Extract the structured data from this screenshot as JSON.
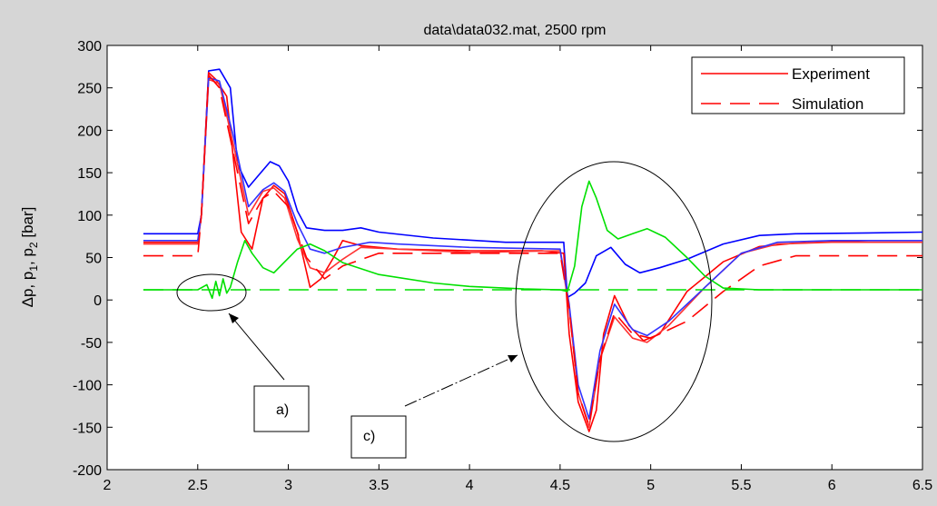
{
  "chart_data": {
    "type": "line",
    "title": "data\\data032.mat, 2500 rpm",
    "ylabel_main": "Δp, p",
    "ylabel_sub1": "1",
    "ylabel_sep": ", p",
    "ylabel_sub2": "2",
    "ylabel_unit": " [bar]",
    "xlim": [
      2,
      6.5
    ],
    "ylim": [
      -200,
      300
    ],
    "xticks": [
      2,
      2.5,
      3,
      3.5,
      4,
      4.5,
      5,
      5.5,
      6,
      6.5
    ],
    "yticks": [
      -200,
      -150,
      -100,
      -50,
      0,
      50,
      100,
      150,
      200,
      250,
      300
    ],
    "xtick_labels": [
      "2",
      "2.5",
      "3",
      "3.5",
      "4",
      "4.5",
      "5",
      "5.5",
      "6",
      "6.5"
    ],
    "ytick_labels": [
      "-200",
      "-150",
      "-100",
      "-50",
      "0",
      "50",
      "100",
      "150",
      "200",
      "250",
      "300"
    ],
    "legend": {
      "position": "top-right",
      "entries": [
        {
          "label": "Experiment",
          "style": "solid",
          "color": "#ff0000"
        },
        {
          "label": "Simulation",
          "style": "dashed",
          "color": "#ff0000"
        }
      ]
    },
    "annotations": [
      {
        "label": "a)",
        "target": "green ripple near x=2.6"
      },
      {
        "label": "c)",
        "target": "transient near x=4.8"
      }
    ],
    "series": [
      {
        "style": "solid",
        "color": "#0000ff",
        "x": [
          2.2,
          2.5,
          2.52,
          2.56,
          2.62,
          2.68,
          2.72,
          2.78,
          2.84,
          2.9,
          2.95,
          3.0,
          3.05,
          3.1,
          3.2,
          3.3,
          3.4,
          3.5,
          3.8,
          4.2,
          4.52,
          4.54,
          4.58,
          4.64,
          4.7,
          4.78,
          4.86,
          4.94,
          5.05,
          5.2,
          5.4,
          5.6,
          5.8,
          6.2,
          6.5
        ],
        "y": [
          78,
          78,
          100,
          270,
          272,
          250,
          160,
          133,
          148,
          163,
          158,
          140,
          105,
          85,
          82,
          82,
          85,
          80,
          73,
          68,
          68,
          3,
          8,
          20,
          52,
          62,
          42,
          32,
          38,
          48,
          66,
          76,
          78,
          79,
          80
        ]
      },
      {
        "style": "solid",
        "color": "#ff0000",
        "x": [
          2.2,
          2.5,
          2.52,
          2.56,
          2.6,
          2.66,
          2.7,
          2.74,
          2.8,
          2.86,
          2.92,
          2.98,
          3.05,
          3.12,
          3.18,
          3.25,
          3.3,
          3.4,
          3.6,
          4.0,
          4.4,
          4.52,
          4.55,
          4.6,
          4.66,
          4.7,
          4.74,
          4.8,
          4.88,
          4.96,
          5.05,
          5.2,
          5.4,
          5.6,
          5.8,
          6.2,
          6.5
        ],
        "y": [
          68,
          68,
          100,
          268,
          260,
          240,
          160,
          80,
          60,
          120,
          135,
          125,
          80,
          15,
          25,
          50,
          70,
          64,
          60,
          58,
          58,
          55,
          -40,
          -120,
          -155,
          -130,
          -40,
          5,
          -30,
          -48,
          -40,
          10,
          45,
          63,
          67,
          70,
          70
        ]
      },
      {
        "style": "solid",
        "color": "#ff3333",
        "x": [
          2.2,
          2.5,
          2.52,
          2.56,
          2.62,
          2.7,
          2.78,
          2.86,
          2.92,
          2.98,
          3.05,
          3.12,
          3.2,
          3.3,
          3.4,
          3.6,
          4.0,
          4.5,
          4.55,
          4.6,
          4.66,
          4.72,
          4.8,
          4.9,
          4.98,
          5.1,
          5.3,
          5.5,
          5.7,
          6.0,
          6.5
        ],
        "y": [
          66,
          66,
          100,
          260,
          255,
          180,
          100,
          128,
          132,
          120,
          72,
          38,
          32,
          48,
          62,
          60,
          56,
          58,
          -10,
          -110,
          -150,
          -70,
          -20,
          -45,
          -50,
          -30,
          15,
          55,
          66,
          68,
          68
        ]
      },
      {
        "style": "solid",
        "color": "#3333ff",
        "x": [
          2.2,
          2.5,
          2.52,
          2.56,
          2.62,
          2.7,
          2.78,
          2.86,
          2.92,
          2.98,
          3.05,
          3.12,
          3.2,
          3.3,
          3.45,
          3.6,
          4.0,
          4.5,
          4.55,
          4.6,
          4.66,
          4.72,
          4.8,
          4.9,
          4.98,
          5.1,
          5.3,
          5.5,
          5.7,
          6.0,
          6.5
        ],
        "y": [
          70,
          70,
          100,
          262,
          258,
          190,
          110,
          130,
          138,
          128,
          90,
          60,
          55,
          62,
          68,
          66,
          62,
          60,
          -5,
          -100,
          -140,
          -60,
          -5,
          -35,
          -42,
          -25,
          15,
          55,
          68,
          70,
          70
        ]
      },
      {
        "style": "dashed",
        "color": "#ff0000",
        "x": [
          2.2,
          2.5,
          2.52,
          2.56,
          2.62,
          2.7,
          2.78,
          2.86,
          2.92,
          3.0,
          3.1,
          3.2,
          3.3,
          3.5,
          4.0,
          4.5,
          4.55,
          4.6,
          4.66,
          4.72,
          4.8,
          4.9,
          5.0,
          5.2,
          5.4,
          5.6,
          5.8,
          6.0,
          6.5
        ],
        "y": [
          52,
          52,
          100,
          265,
          250,
          170,
          90,
          120,
          128,
          110,
          50,
          25,
          40,
          55,
          55,
          55,
          -10,
          -110,
          -148,
          -70,
          -15,
          -40,
          -45,
          -25,
          10,
          40,
          52,
          52,
          52
        ]
      },
      {
        "style": "solid",
        "color": "#00e000",
        "x": [
          2.2,
          2.4,
          2.5,
          2.55,
          2.58,
          2.6,
          2.62,
          2.64,
          2.66,
          2.68,
          2.72,
          2.76,
          2.8,
          2.86,
          2.92,
          2.98,
          3.05,
          3.12,
          3.2,
          3.3,
          3.5,
          3.8,
          4.0,
          4.3,
          4.5,
          4.54,
          4.58,
          4.62,
          4.66,
          4.7,
          4.76,
          4.82,
          4.9,
          4.98,
          5.08,
          5.2,
          5.3,
          5.4,
          5.6,
          6.0,
          6.5
        ],
        "y": [
          12,
          12,
          12,
          18,
          2,
          22,
          5,
          25,
          8,
          15,
          45,
          70,
          55,
          38,
          32,
          45,
          60,
          66,
          58,
          44,
          30,
          20,
          16,
          13,
          12,
          10,
          40,
          110,
          140,
          120,
          82,
          72,
          78,
          84,
          74,
          50,
          28,
          14,
          12,
          12,
          12
        ]
      },
      {
        "style": "dashed",
        "color": "#00e000",
        "x": [
          2.2,
          6.5
        ],
        "y": [
          12,
          12
        ]
      }
    ]
  }
}
